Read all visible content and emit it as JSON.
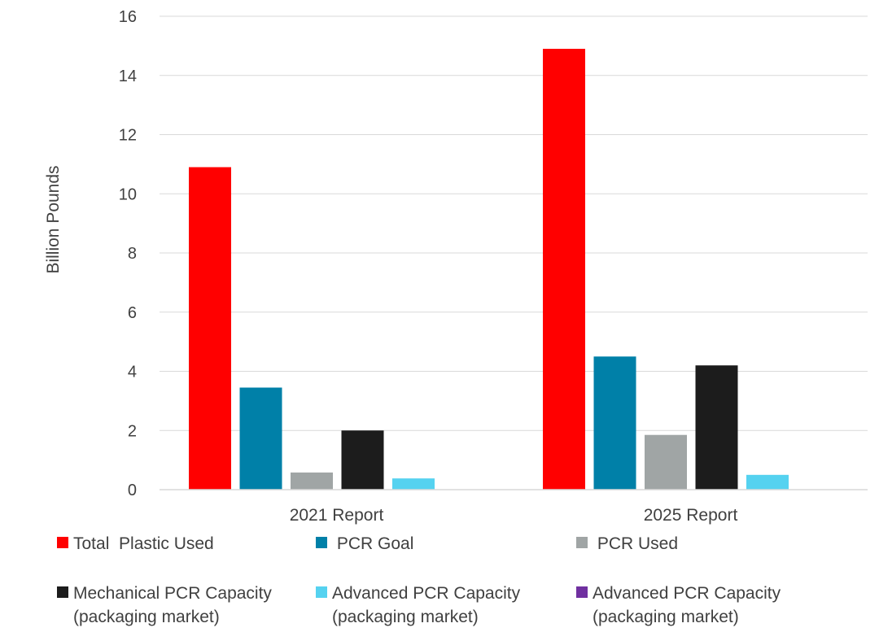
{
  "chart_data": {
    "type": "bar",
    "categories": [
      "2021 Report",
      "2025 Report"
    ],
    "ylabel": "Billion Pounds",
    "xlabel": "",
    "ylim": [
      0,
      16
    ],
    "yticks": [
      0,
      2,
      4,
      6,
      8,
      10,
      12,
      14,
      16
    ],
    "grid": true,
    "legend_position": "bottom",
    "series": [
      {
        "name": "Total  Plastic Used",
        "legend_label": "Total  Plastic Used",
        "color": "#ff0000",
        "values": [
          10.9,
          14.9
        ]
      },
      {
        "name": "PCR Goal",
        "legend_label": " PCR Goal",
        "color": "#0080a8",
        "values": [
          3.45,
          4.5
        ]
      },
      {
        "name": "PCR Used",
        "legend_label": " PCR Used",
        "color": "#a0a5a5",
        "values": [
          0.58,
          1.85
        ]
      },
      {
        "name": "Mechanical PCR Capacity (packaging market)",
        "legend_label": "Mechanical PCR Capacity\n(packaging market)",
        "color": "#1c1c1c",
        "values": [
          2.0,
          4.2
        ]
      },
      {
        "name": "Advanced PCR Capacity (packaging market)",
        "legend_label": "Advanced PCR Capacity\n(packaging market)",
        "color": "#55d2f0",
        "values": [
          0.38,
          0.5
        ]
      },
      {
        "name": "Advanced PCR Capacity (packaging market)",
        "legend_label": "Advanced PCR Capacity\n(packaging market)",
        "color": "#7030a0",
        "values": [
          0,
          0
        ]
      }
    ]
  }
}
